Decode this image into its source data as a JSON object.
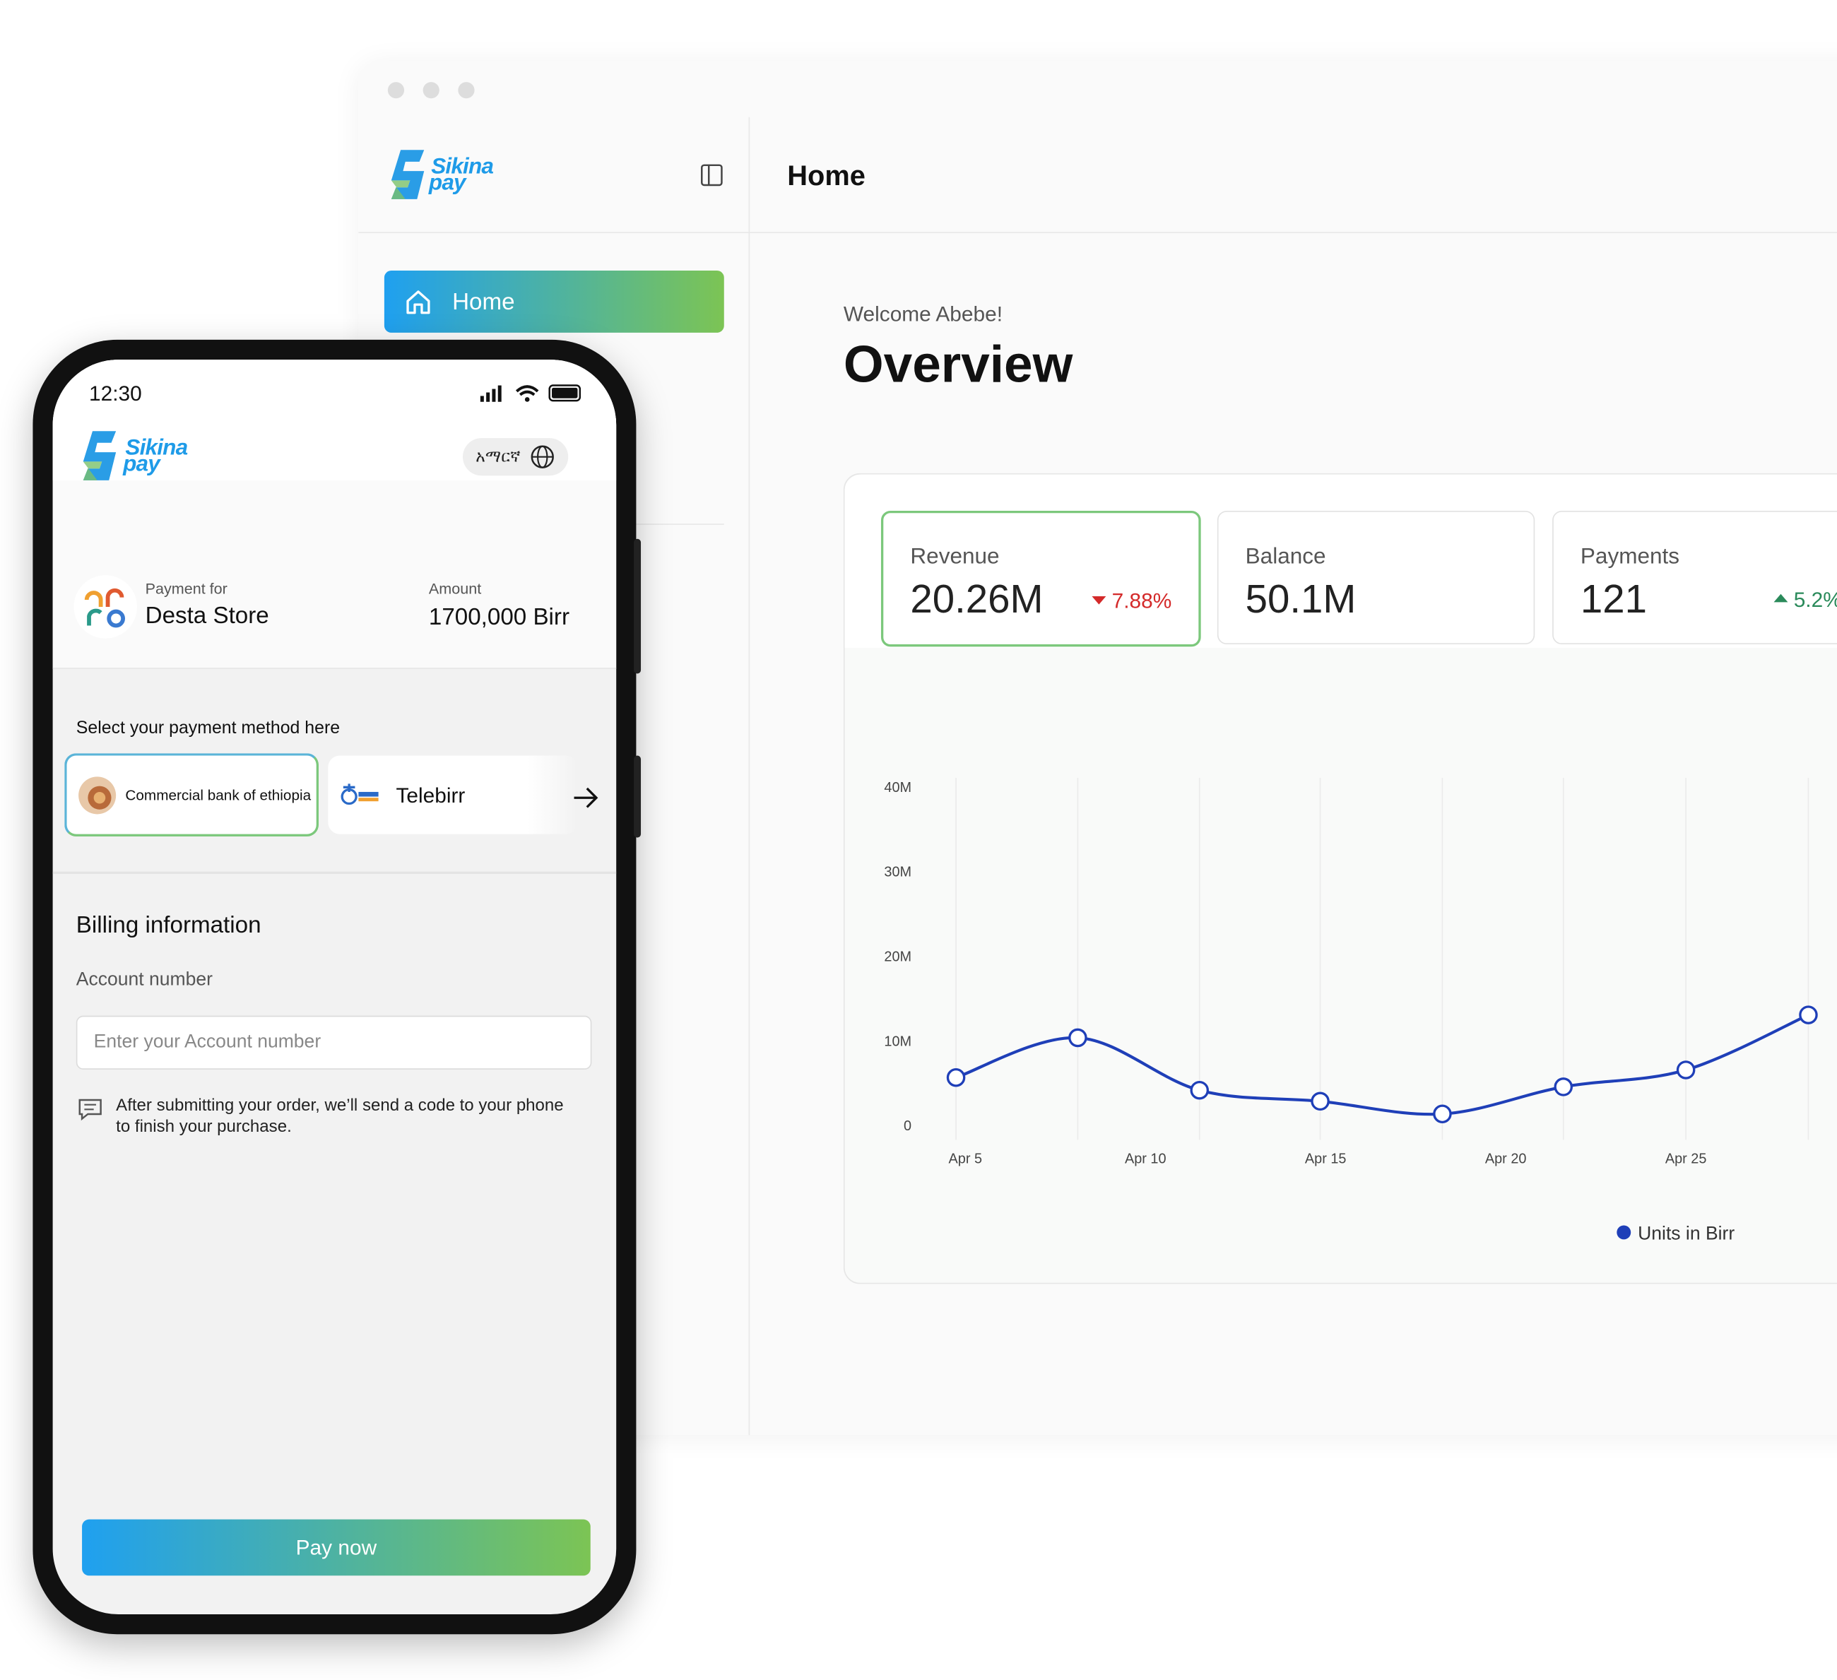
{
  "desktop": {
    "brand": {
      "line1": "Sikina",
      "line2": "pay"
    },
    "header": {
      "title": "Home"
    },
    "sidebar": {
      "nav": [
        "Home"
      ]
    },
    "welcome": "Welcome Abebe!",
    "heading": "Overview",
    "stats": [
      {
        "label": "Revenue",
        "value": "20.26M",
        "change": "7.88%",
        "direction": "down"
      },
      {
        "label": "Balance",
        "value": "50.1M"
      },
      {
        "label": "Payments",
        "value": "121",
        "change": "5.2%",
        "direction": "up"
      }
    ]
  },
  "chart_data": {
    "type": "line",
    "x": [
      4.74,
      8.12,
      11.5,
      14.85,
      18.24,
      21.6,
      25,
      28.4
    ],
    "xlim": [
      4.5,
      30.5
    ],
    "xticks": [
      {
        "value": 5,
        "label": "Apr 5"
      },
      {
        "value": 10,
        "label": "Apr 10"
      },
      {
        "value": 15,
        "label": "Apr 15"
      },
      {
        "value": 20,
        "label": "Apr 20"
      },
      {
        "value": 25,
        "label": "Apr 25"
      }
    ],
    "ylim": [
      0,
      40
    ],
    "yticks": [
      0,
      {
        "value": 10,
        "label": "10M"
      },
      {
        "value": 20,
        "label": "20M"
      },
      {
        "value": 30,
        "label": "30M"
      },
      {
        "value": 40,
        "label": "40M"
      }
    ],
    "series": [
      {
        "name": "Units in Birr",
        "color": "#1f3fb8",
        "values": [
          5.7,
          10.4,
          4.2,
          2.9,
          1.4,
          4.6,
          6.6,
          13.1
        ]
      }
    ],
    "grid": true
  },
  "phone": {
    "time": "12:30",
    "brand": {
      "line1": "Sikina",
      "line2": "pay"
    },
    "language": "አማርኛ",
    "payment_for_label": "Payment for",
    "merchant": "Desta Store",
    "amount_label": "Amount",
    "amount": "1700,000 Birr",
    "select_prompt": "Select your payment method here",
    "methods": [
      "Commercial bank of ethiopia",
      "Telebirr"
    ],
    "billing_title": "Billing information",
    "account_label": "Account number",
    "account_placeholder": "Enter your Account number",
    "note": "After submitting your order, we’ll send a code to your phone to finish your purchase.",
    "button": "Pay now"
  }
}
